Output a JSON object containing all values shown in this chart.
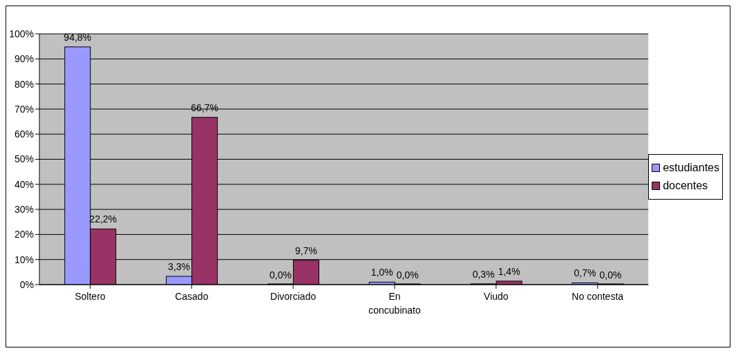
{
  "chart_data": {
    "type": "bar",
    "categories": [
      "Soltero",
      "Casado",
      "Divorciado",
      "En concubinato",
      "Viudo",
      "No contesta"
    ],
    "series": [
      {
        "name": "estudiantes",
        "color": "#9999ff",
        "values": [
          94.8,
          3.3,
          0,
          1.0,
          0.3,
          0.7
        ],
        "value_labels": [
          "94,8%",
          "3,3%",
          "0,0%",
          "1,0%",
          "0,3%",
          "0,7%"
        ]
      },
      {
        "name": "docentes",
        "color": "#993366",
        "values": [
          22.2,
          66.7,
          9.7,
          0,
          1.4,
          0
        ],
        "value_labels": [
          "22,2%",
          "66,7%",
          "9,7%",
          "0,0%",
          "1,4%",
          "0,0%"
        ]
      }
    ],
    "ylim": [
      0,
      100
    ],
    "yticks": [
      {
        "value": 0,
        "label": "0%"
      },
      {
        "value": 10,
        "label": "10%"
      },
      {
        "value": 20,
        "label": "20%"
      },
      {
        "value": 30,
        "label": "30%"
      },
      {
        "value": 40,
        "label": "40%"
      },
      {
        "value": 50,
        "label": "50%"
      },
      {
        "value": 60,
        "label": "60%"
      },
      {
        "value": 70,
        "label": "70%"
      },
      {
        "value": 80,
        "label": "80%"
      },
      {
        "value": 90,
        "label": "90%"
      },
      {
        "value": 100,
        "label": "100%"
      }
    ],
    "grid": "y",
    "legend": "right"
  }
}
